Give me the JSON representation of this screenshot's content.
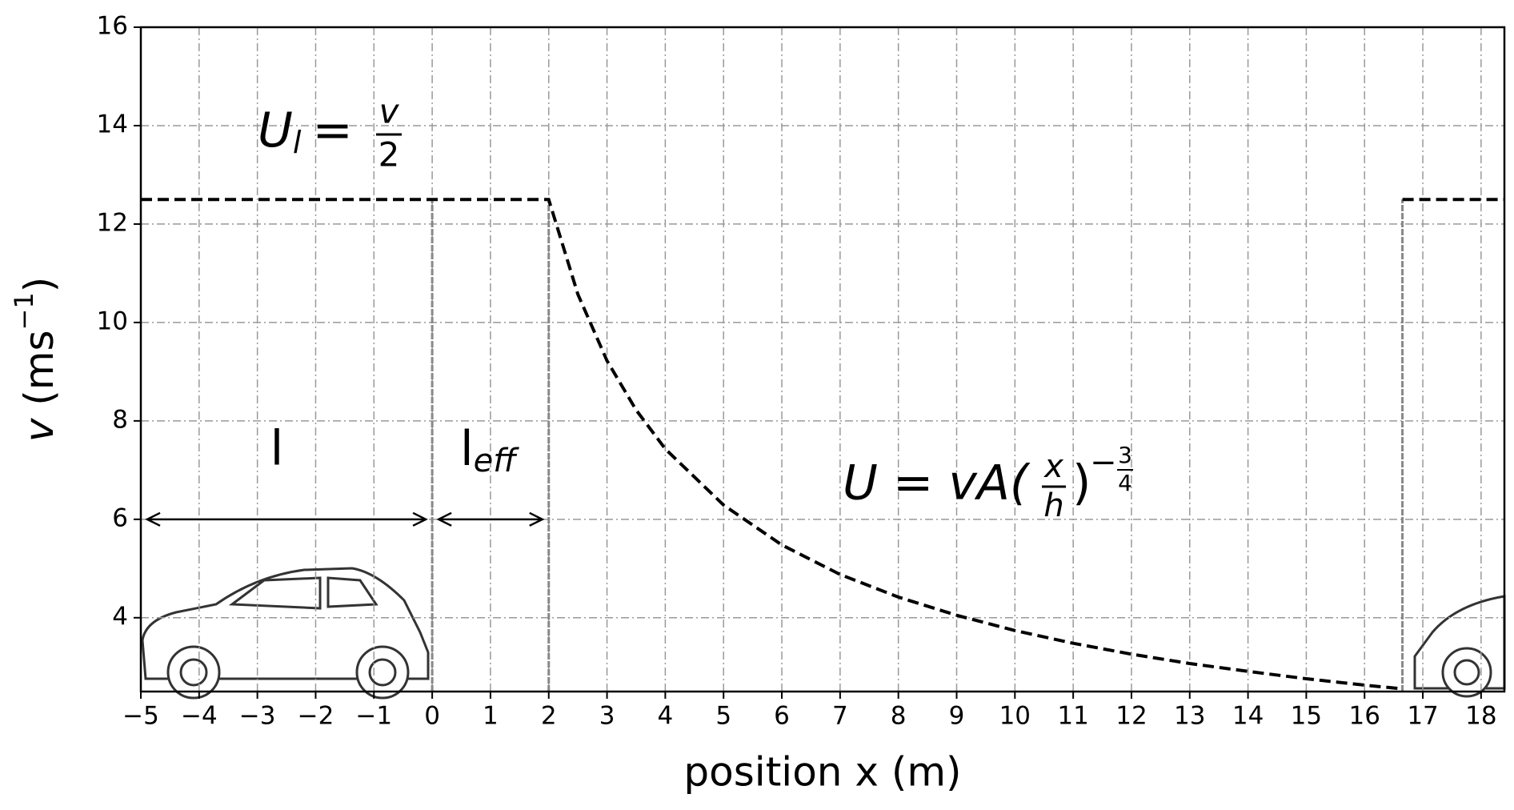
{
  "chart_data": {
    "type": "line",
    "xlabel": "position x (m)",
    "ylabel": {
      "var": "v",
      "unit": " (ms",
      "exp": "−1",
      "close": ")"
    },
    "xlim": [
      -5,
      18.4
    ],
    "ylim": [
      2.5,
      16
    ],
    "xticks": [
      {
        "value": -5,
        "label": "−5"
      },
      {
        "value": -4,
        "label": "−4"
      },
      {
        "value": -3,
        "label": "−3"
      },
      {
        "value": -2,
        "label": "−2"
      },
      {
        "value": -1,
        "label": "−1"
      },
      0,
      1,
      2,
      3,
      4,
      5,
      6,
      7,
      8,
      9,
      10,
      11,
      12,
      13,
      14,
      15,
      16,
      17,
      18
    ],
    "yticks": [
      4,
      6,
      8,
      10,
      12,
      14,
      16
    ],
    "grid": true,
    "series": [
      {
        "color": "#000000",
        "x": [
          -5,
          2,
          2.5,
          3,
          3.5,
          4,
          5,
          6,
          7,
          8,
          9,
          10,
          11,
          12,
          13,
          14,
          15,
          16,
          16.6,
          16.65,
          16.65,
          18.4
        ],
        "values": [
          12.5,
          12.5,
          10.57,
          9.22,
          8.22,
          7.43,
          6.29,
          5.48,
          4.88,
          4.42,
          4.05,
          3.74,
          3.48,
          3.26,
          3.07,
          2.91,
          2.76,
          2.63,
          2.56,
          null,
          12.5,
          12.5
        ]
      }
    ],
    "vlines": {
      "x": [
        0,
        2,
        16.65
      ],
      "top": 12.5,
      "color": "#888888"
    },
    "arrows": [
      {
        "from": -5,
        "to": 0,
        "y": 6
      },
      {
        "from": 0,
        "to": 2,
        "y": 6
      }
    ],
    "annotations": {
      "ul": {
        "main": "U",
        "sub": "l",
        "eq": "=",
        "num": "v",
        "den": "2"
      },
      "l": "l",
      "leff": {
        "main": "l",
        "sub": "eff"
      },
      "u": {
        "lhs": "U = vA(",
        "num": "x",
        "den": "h",
        "close": ")",
        "exp_sign": "−",
        "exp_num": "3",
        "exp_den": "4"
      }
    }
  }
}
